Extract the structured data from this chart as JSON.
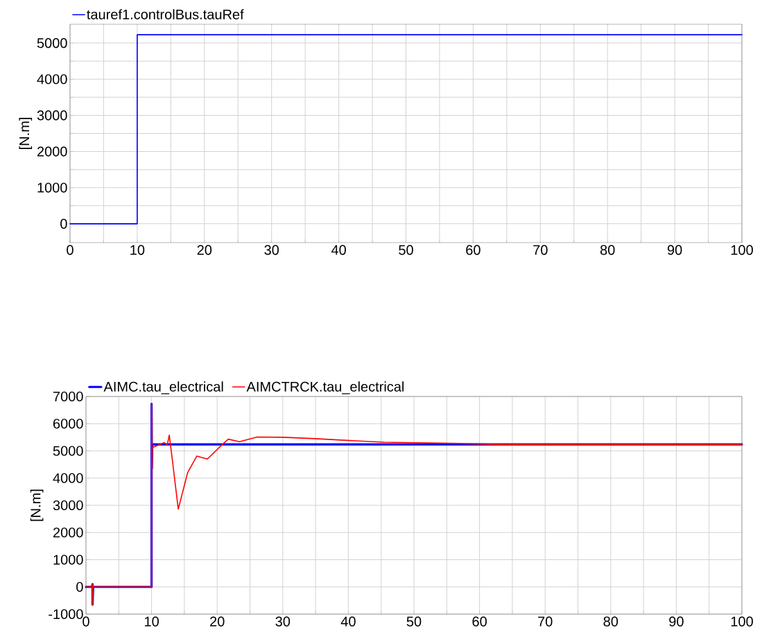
{
  "chart_data": [
    {
      "type": "line",
      "ylabel": "[N.m]",
      "xlim": [
        0,
        100
      ],
      "ylim": [
        -520,
        5520
      ],
      "grid": true,
      "legend": "top",
      "xticks": [
        0,
        {
          "value": 5,
          "label": null
        },
        10,
        {
          "value": 15,
          "label": null
        },
        20,
        {
          "value": 25,
          "label": null
        },
        30,
        {
          "value": 35,
          "label": null
        },
        40,
        {
          "value": 45,
          "label": null
        },
        50,
        {
          "value": 55,
          "label": null
        },
        60,
        {
          "value": 65,
          "label": null
        },
        70,
        {
          "value": 75,
          "label": null
        },
        80,
        {
          "value": 85,
          "label": null
        },
        90,
        {
          "value": 95,
          "label": null
        },
        100
      ],
      "yticks": [
        0,
        {
          "value": 500,
          "label": null
        },
        1000,
        {
          "value": 1500,
          "label": null
        },
        2000,
        {
          "value": 2500,
          "label": null
        },
        3000,
        {
          "value": 3500,
          "label": null
        },
        4000,
        {
          "value": 4500,
          "label": null
        },
        5000
      ],
      "series": [
        {
          "name": "tauref1.controlBus.tauRef",
          "color": "#0000ff",
          "x": [
            0,
            10,
            10,
            100
          ],
          "values": [
            0,
            0,
            5230,
            5230
          ]
        }
      ]
    },
    {
      "type": "line",
      "ylabel": "[N.m]",
      "xlim": [
        0,
        100
      ],
      "ylim": [
        -1000,
        7000
      ],
      "grid": true,
      "legend": "top",
      "xticks": [
        0,
        {
          "value": 5,
          "label": null
        },
        10,
        {
          "value": 15,
          "label": null
        },
        20,
        {
          "value": 25,
          "label": null
        },
        30,
        {
          "value": 35,
          "label": null
        },
        40,
        {
          "value": 45,
          "label": null
        },
        50,
        {
          "value": 55,
          "label": null
        },
        60,
        {
          "value": 65,
          "label": null
        },
        70,
        {
          "value": 75,
          "label": null
        },
        80,
        {
          "value": 85,
          "label": null
        },
        90,
        {
          "value": 95,
          "label": null
        },
        100
      ],
      "yticks": [
        -1000,
        0,
        1000,
        2000,
        3000,
        4000,
        5000,
        6000,
        7000
      ],
      "series": [
        {
          "name": "AIMC.tau_electrical",
          "color": "#0000ff",
          "x": [
            0,
            0.9,
            1,
            1,
            1.1,
            10,
            10,
            10.05,
            10.1,
            100
          ],
          "values": [
            0,
            0,
            100,
            -650,
            0,
            0,
            6730,
            4350,
            5240,
            5240
          ]
        },
        {
          "name": "AIMCTRCK.tau_electrical",
          "color": "#ff0000",
          "x": [
            0,
            0.9,
            1,
            1,
            1.1,
            10,
            10,
            10.05,
            10.1,
            11.9,
            12.4,
            12.7,
            13.0,
            14.07,
            15.5,
            16.9,
            18.5,
            20.8,
            21.7,
            23.4,
            26.1,
            30.1,
            35.0,
            40.3,
            45.5,
            57.2,
            62.8,
            100
          ],
          "values": [
            0,
            0,
            100,
            -650,
            0,
            0,
            6730,
            4350,
            5120,
            5300,
            5230,
            5580,
            5000,
            2860,
            4200,
            4810,
            4700,
            5240,
            5430,
            5340,
            5510,
            5500,
            5450,
            5380,
            5320,
            5270,
            5240,
            5240
          ]
        }
      ]
    }
  ]
}
